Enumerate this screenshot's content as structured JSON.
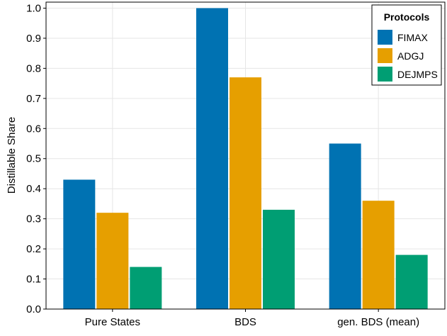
{
  "chart_data": {
    "type": "bar",
    "title": "",
    "xlabel": "",
    "ylabel": "Distillable Share",
    "categories": [
      "Pure States",
      "BDS",
      "gen. BDS (mean)"
    ],
    "series": [
      {
        "name": "FIMAX",
        "color": "#0072b2",
        "values": [
          0.43,
          1.0,
          0.55
        ]
      },
      {
        "name": "ADGJ",
        "color": "#e69f00",
        "values": [
          0.32,
          0.77,
          0.36
        ]
      },
      {
        "name": "DEJMPS",
        "color": "#009e73",
        "values": [
          0.14,
          0.33,
          0.18
        ]
      }
    ],
    "ylim": [
      0.0,
      1.02
    ],
    "yticks": [
      "0.0",
      "0.1",
      "0.2",
      "0.3",
      "0.4",
      "0.5",
      "0.6",
      "0.7",
      "0.8",
      "0.9",
      "1.0"
    ],
    "grid": true,
    "legend": {
      "title": "Protocols",
      "placement": "top-right"
    }
  }
}
